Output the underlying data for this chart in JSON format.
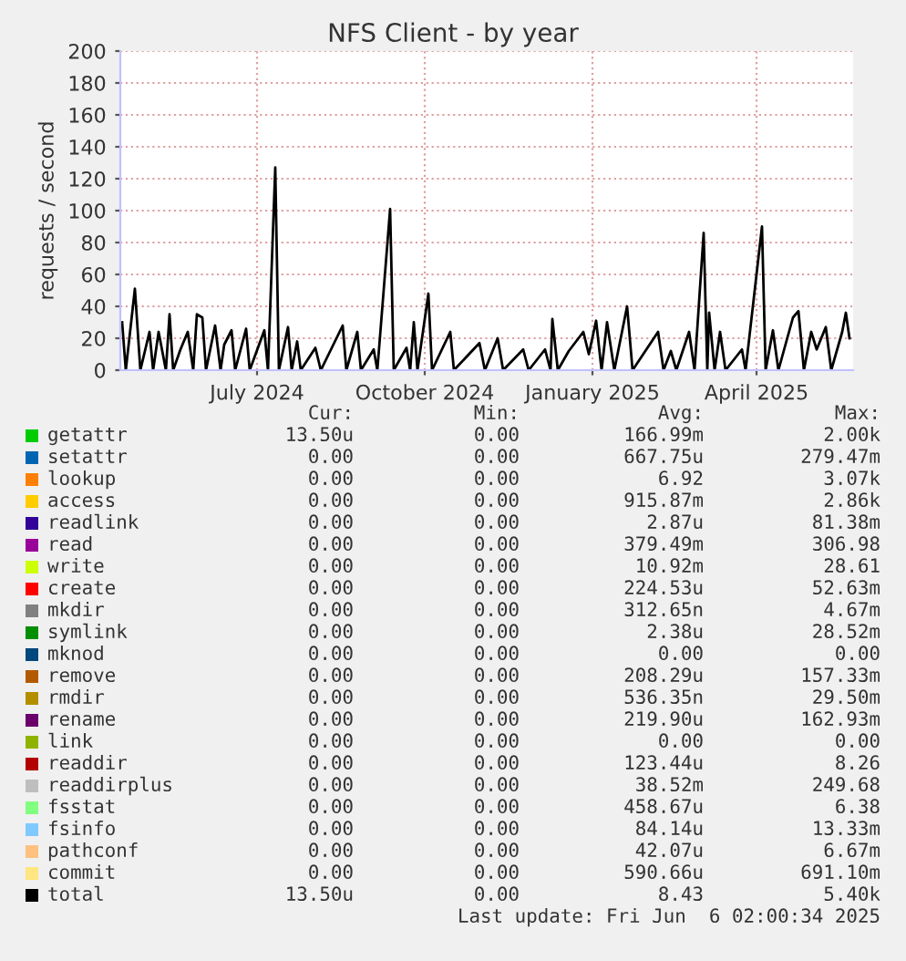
{
  "chart_data": {
    "type": "line",
    "title": "NFS Client - by year",
    "ylabel": "requests / second",
    "x": [
      "2024-04-18",
      "2024-04-20",
      "2024-04-25",
      "2024-04-28",
      "2024-05-03",
      "2024-05-05",
      "2024-05-08",
      "2024-05-12",
      "2024-05-14",
      "2024-05-16",
      "2024-05-20",
      "2024-05-24",
      "2024-05-27",
      "2024-05-29",
      "2024-06-01",
      "2024-06-03",
      "2024-06-08",
      "2024-06-11",
      "2024-06-13",
      "2024-06-17",
      "2024-06-19",
      "2024-06-25",
      "2024-06-27",
      "2024-07-05",
      "2024-07-07",
      "2024-07-11",
      "2024-07-13",
      "2024-07-18",
      "2024-07-20",
      "2024-07-23",
      "2024-07-25",
      "2024-08-02",
      "2024-08-05",
      "2024-08-17",
      "2024-08-19",
      "2024-08-25",
      "2024-08-27",
      "2024-09-03",
      "2024-09-05",
      "2024-09-12",
      "2024-09-14",
      "2024-09-21",
      "2024-09-23",
      "2024-09-25",
      "2024-09-27",
      "2024-10-03",
      "2024-10-05",
      "2024-10-15",
      "2024-10-17",
      "2024-10-31",
      "2024-11-03",
      "2024-11-10",
      "2024-11-13",
      "2024-11-24",
      "2024-11-27",
      "2024-12-06",
      "2024-12-09",
      "2024-12-10",
      "2024-12-13",
      "2024-12-19",
      "2024-12-27",
      "2024-12-30",
      "2025-01-03",
      "2025-01-06",
      "2025-01-09",
      "2025-01-13",
      "2025-01-20",
      "2025-01-23",
      "2025-02-06",
      "2025-02-09",
      "2025-02-13",
      "2025-02-16",
      "2025-02-23",
      "2025-02-26",
      "2025-03-03",
      "2025-03-05",
      "2025-03-06",
      "2025-03-09",
      "2025-03-12",
      "2025-03-15",
      "2025-03-24",
      "2025-03-26",
      "2025-04-04",
      "2025-04-06",
      "2025-04-10",
      "2025-04-13",
      "2025-04-21",
      "2025-04-24",
      "2025-04-27",
      "2025-05-01",
      "2025-05-04",
      "2025-05-09",
      "2025-05-12",
      "2025-05-18",
      "2025-05-20",
      "2025-05-22"
    ],
    "xlim": [
      "2024-04-17",
      "2025-05-24"
    ],
    "xticks": [
      {
        "value": "2024-07-01",
        "label": "July 2024"
      },
      {
        "value": "2024-10-01",
        "label": "October 2024"
      },
      {
        "value": "2025-01-01",
        "label": "January 2025"
      },
      {
        "value": "2025-04-01",
        "label": "April 2025"
      }
    ],
    "ylim": [
      0,
      200
    ],
    "yticks": [
      0,
      20,
      40,
      60,
      80,
      100,
      120,
      140,
      160,
      180,
      200
    ],
    "grid": true,
    "legend": "bottom",
    "series": [
      {
        "name": "getattr",
        "color": "#00cc00",
        "values": [
          null,
          null,
          null,
          null,
          null,
          null,
          null,
          null,
          null,
          null,
          null,
          null,
          null,
          null,
          null,
          null,
          null,
          null,
          null,
          null,
          null,
          null,
          null,
          null,
          null,
          null,
          null,
          null,
          null,
          null,
          null,
          null,
          null,
          null,
          null,
          null,
          null,
          null,
          null,
          null,
          null,
          null,
          null,
          null,
          null,
          null,
          null,
          null,
          null,
          null,
          null,
          null,
          null,
          null,
          null,
          null,
          null,
          null,
          null,
          null,
          null,
          null,
          null,
          null,
          null,
          null,
          null,
          null,
          null,
          null,
          null,
          null,
          null,
          null,
          null,
          null,
          null,
          null,
          null,
          null,
          null,
          null,
          null,
          null,
          null,
          null,
          null,
          null,
          null,
          null,
          null,
          null,
          null,
          null,
          null,
          null
        ]
      },
      {
        "name": "setattr",
        "color": "#0066b3",
        "values": [
          null,
          null,
          null,
          null,
          null,
          null,
          null,
          null,
          null,
          null,
          null,
          null,
          null,
          null,
          null,
          null,
          null,
          null,
          null,
          null,
          null,
          null,
          null,
          null,
          null,
          null,
          null,
          null,
          null,
          null,
          null,
          null,
          null,
          null,
          null,
          null,
          null,
          null,
          null,
          null,
          null,
          null,
          null,
          null,
          null,
          null,
          null,
          null,
          null,
          null,
          null,
          null,
          null,
          null,
          null,
          null,
          null,
          null,
          null,
          null,
          null,
          null,
          null,
          null,
          null,
          null,
          null,
          null,
          null,
          null,
          null,
          null,
          null,
          null,
          null,
          null,
          null,
          null,
          null,
          null,
          null,
          null,
          null,
          null,
          null,
          null,
          null,
          null,
          null,
          null,
          null,
          null,
          null,
          null,
          null,
          null
        ]
      },
      {
        "name": "lookup",
        "color": "#ff8000",
        "values": [
          null,
          null,
          null,
          null,
          null,
          null,
          null,
          null,
          null,
          null,
          null,
          null,
          null,
          null,
          null,
          null,
          null,
          null,
          null,
          null,
          null,
          null,
          null,
          null,
          null,
          null,
          null,
          null,
          null,
          null,
          null,
          null,
          null,
          null,
          null,
          null,
          null,
          null,
          null,
          null,
          null,
          null,
          null,
          null,
          null,
          null,
          null,
          null,
          null,
          null,
          null,
          null,
          null,
          null,
          null,
          null,
          null,
          null,
          null,
          null,
          null,
          null,
          null,
          null,
          null,
          null,
          null,
          null,
          null,
          null,
          null,
          null,
          null,
          null,
          null,
          null,
          null,
          null,
          null,
          null,
          null,
          null,
          null,
          null,
          null,
          null,
          null,
          null,
          null,
          null,
          null,
          null,
          null,
          null,
          null,
          null
        ]
      },
      {
        "name": "access",
        "color": "#ffcc00",
        "values": [
          null,
          null,
          null,
          null,
          null,
          null,
          null,
          null,
          null,
          null,
          null,
          null,
          null,
          null,
          null,
          null,
          null,
          null,
          null,
          null,
          null,
          null,
          null,
          null,
          null,
          null,
          null,
          null,
          null,
          null,
          null,
          null,
          null,
          null,
          null,
          null,
          null,
          null,
          null,
          null,
          null,
          null,
          null,
          null,
          null,
          null,
          null,
          null,
          null,
          null,
          null,
          null,
          null,
          null,
          null,
          null,
          null,
          null,
          null,
          null,
          null,
          null,
          null,
          null,
          null,
          null,
          null,
          null,
          null,
          null,
          null,
          null,
          null,
          null,
          null,
          null,
          null,
          null,
          null,
          null,
          null,
          null,
          null,
          null,
          null,
          null,
          null,
          null,
          null,
          null,
          null,
          null,
          null,
          null,
          null,
          null
        ]
      },
      {
        "name": "readlink",
        "color": "#330099",
        "values": [
          null,
          null,
          null,
          null,
          null,
          null,
          null,
          null,
          null,
          null,
          null,
          null,
          null,
          null,
          null,
          null,
          null,
          null,
          null,
          null,
          null,
          null,
          null,
          null,
          null,
          null,
          null,
          null,
          null,
          null,
          null,
          null,
          null,
          null,
          null,
          null,
          null,
          null,
          null,
          null,
          null,
          null,
          null,
          null,
          null,
          null,
          null,
          null,
          null,
          null,
          null,
          null,
          null,
          null,
          null,
          null,
          null,
          null,
          null,
          null,
          null,
          null,
          null,
          null,
          null,
          null,
          null,
          null,
          null,
          null,
          null,
          null,
          null,
          null,
          null,
          null,
          null,
          null,
          null,
          null,
          null,
          null,
          null,
          null,
          null,
          null,
          null,
          null,
          null,
          null,
          null,
          null,
          null,
          null,
          null,
          null
        ]
      },
      {
        "name": "read",
        "color": "#990099",
        "values": [
          null,
          null,
          null,
          null,
          null,
          null,
          null,
          null,
          null,
          null,
          null,
          null,
          null,
          null,
          null,
          null,
          null,
          null,
          null,
          null,
          null,
          null,
          null,
          null,
          null,
          null,
          null,
          null,
          null,
          null,
          null,
          null,
          null,
          null,
          null,
          null,
          null,
          null,
          null,
          null,
          null,
          null,
          null,
          null,
          null,
          null,
          null,
          null,
          null,
          null,
          null,
          null,
          null,
          null,
          null,
          null,
          null,
          null,
          null,
          null,
          null,
          null,
          null,
          null,
          null,
          null,
          null,
          null,
          null,
          null,
          null,
          null,
          null,
          null,
          null,
          null,
          null,
          null,
          null,
          null,
          null,
          null,
          null,
          null,
          null,
          null,
          null,
          null,
          null,
          null,
          null,
          null,
          null,
          null,
          null,
          null
        ]
      },
      {
        "name": "write",
        "color": "#ccff00",
        "values": [
          null,
          null,
          null,
          null,
          null,
          null,
          null,
          null,
          null,
          null,
          null,
          null,
          null,
          null,
          null,
          null,
          null,
          null,
          null,
          null,
          null,
          null,
          null,
          null,
          null,
          null,
          null,
          null,
          null,
          null,
          null,
          null,
          null,
          null,
          null,
          null,
          null,
          null,
          null,
          null,
          null,
          null,
          null,
          null,
          null,
          null,
          null,
          null,
          null,
          null,
          null,
          null,
          null,
          null,
          null,
          null,
          null,
          null,
          null,
          null,
          null,
          null,
          null,
          null,
          null,
          null,
          null,
          null,
          null,
          null,
          null,
          null,
          null,
          null,
          null,
          null,
          null,
          null,
          null,
          null,
          null,
          null,
          null,
          null,
          null,
          null,
          null,
          null,
          null,
          null,
          null,
          null,
          null,
          null,
          null,
          null
        ]
      },
      {
        "name": "create",
        "color": "#ff0000",
        "values": [
          null,
          null,
          null,
          null,
          null,
          null,
          null,
          null,
          null,
          null,
          null,
          null,
          null,
          null,
          null,
          null,
          null,
          null,
          null,
          null,
          null,
          null,
          null,
          null,
          null,
          null,
          null,
          null,
          null,
          null,
          null,
          null,
          null,
          null,
          null,
          null,
          null,
          null,
          null,
          null,
          null,
          null,
          null,
          null,
          null,
          null,
          null,
          null,
          null,
          null,
          null,
          null,
          null,
          null,
          null,
          null,
          null,
          null,
          null,
          null,
          null,
          null,
          null,
          null,
          null,
          null,
          null,
          null,
          null,
          null,
          null,
          null,
          null,
          null,
          null,
          null,
          null,
          null,
          null,
          null,
          null,
          null,
          null,
          null,
          null,
          null,
          null,
          null,
          null,
          null,
          null,
          null,
          null,
          null,
          null,
          null
        ]
      },
      {
        "name": "mkdir",
        "color": "#808080",
        "values": [
          null,
          null,
          null,
          null,
          null,
          null,
          null,
          null,
          null,
          null,
          null,
          null,
          null,
          null,
          null,
          null,
          null,
          null,
          null,
          null,
          null,
          null,
          null,
          null,
          null,
          null,
          null,
          null,
          null,
          null,
          null,
          null,
          null,
          null,
          null,
          null,
          null,
          null,
          null,
          null,
          null,
          null,
          null,
          null,
          null,
          null,
          null,
          null,
          null,
          null,
          null,
          null,
          null,
          null,
          null,
          null,
          null,
          null,
          null,
          null,
          null,
          null,
          null,
          null,
          null,
          null,
          null,
          null,
          null,
          null,
          null,
          null,
          null,
          null,
          null,
          null,
          null,
          null,
          null,
          null,
          null,
          null,
          null,
          null,
          null,
          null,
          null,
          null,
          null,
          null,
          null,
          null,
          null,
          null,
          null,
          null
        ]
      },
      {
        "name": "symlink",
        "color": "#008f00",
        "values": [
          null,
          null,
          null,
          null,
          null,
          null,
          null,
          null,
          null,
          null,
          null,
          null,
          null,
          null,
          null,
          null,
          null,
          null,
          null,
          null,
          null,
          null,
          null,
          null,
          null,
          null,
          null,
          null,
          null,
          null,
          null,
          null,
          null,
          null,
          null,
          null,
          null,
          null,
          null,
          null,
          null,
          null,
          null,
          null,
          null,
          null,
          null,
          null,
          null,
          null,
          null,
          null,
          null,
          null,
          null,
          null,
          null,
          null,
          null,
          null,
          null,
          null,
          null,
          null,
          null,
          null,
          null,
          null,
          null,
          null,
          null,
          null,
          null,
          null,
          null,
          null,
          null,
          null,
          null,
          null,
          null,
          null,
          null,
          null,
          null,
          null,
          null,
          null,
          null,
          null,
          null,
          null,
          null,
          null,
          null,
          null
        ]
      },
      {
        "name": "mknod",
        "color": "#00487d",
        "values": [
          null,
          null,
          null,
          null,
          null,
          null,
          null,
          null,
          null,
          null,
          null,
          null,
          null,
          null,
          null,
          null,
          null,
          null,
          null,
          null,
          null,
          null,
          null,
          null,
          null,
          null,
          null,
          null,
          null,
          null,
          null,
          null,
          null,
          null,
          null,
          null,
          null,
          null,
          null,
          null,
          null,
          null,
          null,
          null,
          null,
          null,
          null,
          null,
          null,
          null,
          null,
          null,
          null,
          null,
          null,
          null,
          null,
          null,
          null,
          null,
          null,
          null,
          null,
          null,
          null,
          null,
          null,
          null,
          null,
          null,
          null,
          null,
          null,
          null,
          null,
          null,
          null,
          null,
          null,
          null,
          null,
          null,
          null,
          null,
          null,
          null,
          null,
          null,
          null,
          null,
          null,
          null,
          null,
          null,
          null,
          null
        ]
      },
      {
        "name": "remove",
        "color": "#b35a00",
        "values": [
          null,
          null,
          null,
          null,
          null,
          null,
          null,
          null,
          null,
          null,
          null,
          null,
          null,
          null,
          null,
          null,
          null,
          null,
          null,
          null,
          null,
          null,
          null,
          null,
          null,
          null,
          null,
          null,
          null,
          null,
          null,
          null,
          null,
          null,
          null,
          null,
          null,
          null,
          null,
          null,
          null,
          null,
          null,
          null,
          null,
          null,
          null,
          null,
          null,
          null,
          null,
          null,
          null,
          null,
          null,
          null,
          null,
          null,
          null,
          null,
          null,
          null,
          null,
          null,
          null,
          null,
          null,
          null,
          null,
          null,
          null,
          null,
          null,
          null,
          null,
          null,
          null,
          null,
          null,
          null,
          null,
          null,
          null,
          null,
          null,
          null,
          null,
          null,
          null,
          null,
          null,
          null,
          null,
          null,
          null,
          null
        ]
      },
      {
        "name": "rmdir",
        "color": "#b38f00",
        "values": [
          null,
          null,
          null,
          null,
          null,
          null,
          null,
          null,
          null,
          null,
          null,
          null,
          null,
          null,
          null,
          null,
          null,
          null,
          null,
          null,
          null,
          null,
          null,
          null,
          null,
          null,
          null,
          null,
          null,
          null,
          null,
          null,
          null,
          null,
          null,
          null,
          null,
          null,
          null,
          null,
          null,
          null,
          null,
          null,
          null,
          null,
          null,
          null,
          null,
          null,
          null,
          null,
          null,
          null,
          null,
          null,
          null,
          null,
          null,
          null,
          null,
          null,
          null,
          null,
          null,
          null,
          null,
          null,
          null,
          null,
          null,
          null,
          null,
          null,
          null,
          null,
          null,
          null,
          null,
          null,
          null,
          null,
          null,
          null,
          null,
          null,
          null,
          null,
          null,
          null,
          null,
          null,
          null,
          null,
          null,
          null
        ]
      },
      {
        "name": "rename",
        "color": "#6b006b",
        "values": [
          null,
          null,
          null,
          null,
          null,
          null,
          null,
          null,
          null,
          null,
          null,
          null,
          null,
          null,
          null,
          null,
          null,
          null,
          null,
          null,
          null,
          null,
          null,
          null,
          null,
          null,
          null,
          null,
          null,
          null,
          null,
          null,
          null,
          null,
          null,
          null,
          null,
          null,
          null,
          null,
          null,
          null,
          null,
          null,
          null,
          null,
          null,
          null,
          null,
          null,
          null,
          null,
          null,
          null,
          null,
          null,
          null,
          null,
          null,
          null,
          null,
          null,
          null,
          null,
          null,
          null,
          null,
          null,
          null,
          null,
          null,
          null,
          null,
          null,
          null,
          null,
          null,
          null,
          null,
          null,
          null,
          null,
          null,
          null,
          null,
          null,
          null,
          null,
          null,
          null,
          null,
          null,
          null,
          null,
          null,
          null
        ]
      },
      {
        "name": "link",
        "color": "#8fb300",
        "values": [
          null,
          null,
          null,
          null,
          null,
          null,
          null,
          null,
          null,
          null,
          null,
          null,
          null,
          null,
          null,
          null,
          null,
          null,
          null,
          null,
          null,
          null,
          null,
          null,
          null,
          null,
          null,
          null,
          null,
          null,
          null,
          null,
          null,
          null,
          null,
          null,
          null,
          null,
          null,
          null,
          null,
          null,
          null,
          null,
          null,
          null,
          null,
          null,
          null,
          null,
          null,
          null,
          null,
          null,
          null,
          null,
          null,
          null,
          null,
          null,
          null,
          null,
          null,
          null,
          null,
          null,
          null,
          null,
          null,
          null,
          null,
          null,
          null,
          null,
          null,
          null,
          null,
          null,
          null,
          null,
          null,
          null,
          null,
          null,
          null,
          null,
          null,
          null,
          null,
          null,
          null,
          null,
          null,
          null,
          null,
          null
        ]
      },
      {
        "name": "readdir",
        "color": "#b30000",
        "values": [
          null,
          null,
          null,
          null,
          null,
          null,
          null,
          null,
          null,
          null,
          null,
          null,
          null,
          null,
          null,
          null,
          null,
          null,
          null,
          null,
          null,
          null,
          null,
          null,
          null,
          null,
          null,
          null,
          null,
          null,
          null,
          null,
          null,
          null,
          null,
          null,
          null,
          null,
          null,
          null,
          null,
          null,
          null,
          null,
          null,
          null,
          null,
          null,
          null,
          null,
          null,
          null,
          null,
          null,
          null,
          null,
          null,
          null,
          null,
          null,
          null,
          null,
          null,
          null,
          null,
          null,
          null,
          null,
          null,
          null,
          null,
          null,
          null,
          null,
          null,
          null,
          null,
          null,
          null,
          null,
          null,
          null,
          null,
          null,
          null,
          null,
          null,
          null,
          null,
          null,
          null,
          null,
          null,
          null,
          null,
          null
        ]
      },
      {
        "name": "readdirplus",
        "color": "#bebebe",
        "values": [
          null,
          null,
          null,
          null,
          null,
          null,
          null,
          null,
          null,
          null,
          null,
          null,
          null,
          null,
          null,
          null,
          null,
          null,
          null,
          null,
          null,
          null,
          null,
          null,
          null,
          null,
          null,
          null,
          null,
          null,
          null,
          null,
          null,
          null,
          null,
          null,
          null,
          null,
          null,
          null,
          null,
          null,
          null,
          null,
          null,
          null,
          null,
          null,
          null,
          null,
          null,
          null,
          null,
          null,
          null,
          null,
          null,
          null,
          null,
          null,
          null,
          null,
          null,
          null,
          null,
          null,
          null,
          null,
          null,
          null,
          null,
          null,
          null,
          null,
          null,
          null,
          null,
          null,
          null,
          null,
          null,
          null,
          null,
          null,
          null,
          null,
          null,
          null,
          null,
          null,
          null,
          null,
          null,
          null,
          null,
          null
        ]
      },
      {
        "name": "fsstat",
        "color": "#80ff80",
        "values": [
          null,
          null,
          null,
          null,
          null,
          null,
          null,
          null,
          null,
          null,
          null,
          null,
          null,
          null,
          null,
          null,
          null,
          null,
          null,
          null,
          null,
          null,
          null,
          null,
          null,
          null,
          null,
          null,
          null,
          null,
          null,
          null,
          null,
          null,
          null,
          null,
          null,
          null,
          null,
          null,
          null,
          null,
          null,
          null,
          null,
          null,
          null,
          null,
          null,
          null,
          null,
          null,
          null,
          null,
          null,
          null,
          null,
          null,
          null,
          null,
          null,
          null,
          null,
          null,
          null,
          null,
          null,
          null,
          null,
          null,
          null,
          null,
          null,
          null,
          null,
          null,
          null,
          null,
          null,
          null,
          null,
          null,
          null,
          null,
          null,
          null,
          null,
          null,
          null,
          null,
          null,
          null,
          null,
          null,
          null,
          null
        ]
      },
      {
        "name": "fsinfo",
        "color": "#80c9ff",
        "values": [
          null,
          null,
          null,
          null,
          null,
          null,
          null,
          null,
          null,
          null,
          null,
          null,
          null,
          null,
          null,
          null,
          null,
          null,
          null,
          null,
          null,
          null,
          null,
          null,
          null,
          null,
          null,
          null,
          null,
          null,
          null,
          null,
          null,
          null,
          null,
          null,
          null,
          null,
          null,
          null,
          null,
          null,
          null,
          null,
          null,
          null,
          null,
          null,
          null,
          null,
          null,
          null,
          null,
          null,
          null,
          null,
          null,
          null,
          null,
          null,
          null,
          null,
          null,
          null,
          null,
          null,
          null,
          null,
          null,
          null,
          null,
          null,
          null,
          null,
          null,
          null,
          null,
          null,
          null,
          null,
          null,
          null,
          null,
          null,
          null,
          null,
          null,
          null,
          null,
          null,
          null,
          null,
          null,
          null,
          null,
          null
        ]
      },
      {
        "name": "pathconf",
        "color": "#ffc080",
        "values": [
          null,
          null,
          null,
          null,
          null,
          null,
          null,
          null,
          null,
          null,
          null,
          null,
          null,
          null,
          null,
          null,
          null,
          null,
          null,
          null,
          null,
          null,
          null,
          null,
          null,
          null,
          null,
          null,
          null,
          null,
          null,
          null,
          null,
          null,
          null,
          null,
          null,
          null,
          null,
          null,
          null,
          null,
          null,
          null,
          null,
          null,
          null,
          null,
          null,
          null,
          null,
          null,
          null,
          null,
          null,
          null,
          null,
          null,
          null,
          null,
          null,
          null,
          null,
          null,
          null,
          null,
          null,
          null,
          null,
          null,
          null,
          null,
          null,
          null,
          null,
          null,
          null,
          null,
          null,
          null,
          null,
          null,
          null,
          null,
          null,
          null,
          null,
          null,
          null,
          null,
          null,
          null,
          null,
          null,
          null,
          null
        ]
      },
      {
        "name": "commit",
        "color": "#ffe680",
        "values": [
          null,
          null,
          null,
          null,
          null,
          null,
          null,
          null,
          null,
          null,
          null,
          null,
          null,
          null,
          null,
          null,
          null,
          null,
          null,
          null,
          null,
          null,
          null,
          null,
          null,
          null,
          null,
          null,
          null,
          null,
          null,
          null,
          null,
          null,
          null,
          null,
          null,
          null,
          null,
          null,
          null,
          null,
          null,
          null,
          null,
          null,
          null,
          null,
          null,
          null,
          null,
          null,
          null,
          null,
          null,
          null,
          null,
          null,
          null,
          null,
          null,
          null,
          null,
          null,
          null,
          null,
          null,
          null,
          null,
          null,
          null,
          null,
          null,
          null,
          null,
          null,
          null,
          null,
          null,
          null,
          null,
          null,
          null,
          null,
          null,
          null,
          null,
          null,
          null,
          null,
          null,
          null,
          null,
          null,
          null,
          null
        ]
      },
      {
        "name": "total",
        "color": "#000000",
        "values": [
          30,
          0,
          51,
          0,
          24,
          0,
          24,
          0,
          35,
          0,
          13,
          24,
          0,
          35,
          33,
          0,
          28,
          0,
          16,
          25,
          0,
          26,
          0,
          25,
          0,
          127,
          0,
          27,
          0,
          18,
          0,
          14,
          0,
          28,
          0,
          24,
          0,
          13,
          0,
          101,
          0,
          14,
          0,
          30,
          0,
          48,
          0,
          24,
          0,
          17,
          0,
          20,
          0,
          13,
          0,
          13,
          0,
          32,
          0,
          12,
          24,
          10,
          31,
          0,
          30,
          0,
          40,
          0,
          24,
          0,
          12,
          0,
          24,
          0,
          86,
          0,
          36,
          0,
          24,
          0,
          13,
          0,
          90,
          0,
          25,
          0,
          33,
          37,
          0,
          24,
          13,
          27,
          0,
          24,
          36,
          20
        ]
      }
    ],
    "annotations": [
      "Cur:",
      "Min:",
      "Avg:",
      "Max:",
      "13.50u 0.00 166.99m 2.00k",
      "0.00 0.00 667.75u 279.47m",
      "0.00 0.00 6.92 3.07k",
      "0.00 0.00 915.87m 2.86k",
      "0.00 0.00 2.87u 81.38m",
      "0.00 0.00 379.49m 306.98",
      "0.00 0.00 10.92m 28.61",
      "0.00 0.00 224.53u 52.63m",
      "0.00 0.00 312.65n 4.67m",
      "0.00 0.00 2.38u 28.52m",
      "0.00 0.00 0.00 0.00",
      "0.00 0.00 208.29u 157.33m",
      "0.00 0.00 536.35n 29.50m",
      "0.00 0.00 219.90u 162.93m",
      "0.00 0.00 0.00 0.00",
      "0.00 0.00 123.44u 8.26",
      "0.00 0.00 38.52m 249.68",
      "0.00 0.00 458.67u 6.38",
      "0.00 0.00 84.14u 13.33m",
      "0.00 0.00 42.07u 6.67m",
      "0.00 0.00 590.66u 691.10m",
      "13.50u 0.00 8.43 5.40k",
      "Last update: Fri Jun  6 02:00:34 2025"
    ]
  }
}
